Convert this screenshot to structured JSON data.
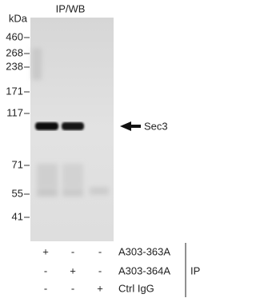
{
  "header": {
    "title": "IP/WB",
    "unit": "kDa"
  },
  "markers": [
    "460",
    "268",
    "238",
    "171",
    "117",
    "71",
    "55",
    "41"
  ],
  "band_label": "Sec3",
  "rows": [
    {
      "signs": [
        "+",
        "-",
        "-"
      ],
      "label": "A303-363A"
    },
    {
      "signs": [
        "-",
        "+",
        "-"
      ],
      "label": "A303-364A"
    },
    {
      "signs": [
        "-",
        "-",
        "+"
      ],
      "label": "Ctrl IgG"
    }
  ],
  "group_label": "IP"
}
